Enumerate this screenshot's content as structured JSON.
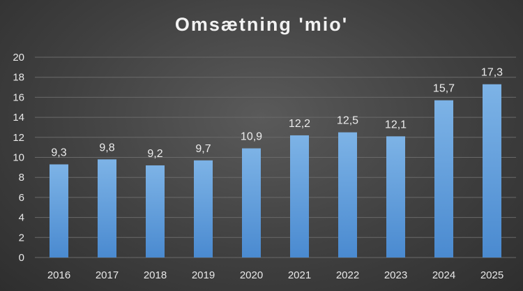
{
  "chart_data": {
    "type": "bar",
    "title": "Omsætning 'mio'",
    "categories": [
      "2016",
      "2017",
      "2018",
      "2019",
      "2020",
      "2021",
      "2022",
      "2023",
      "2024",
      "2025"
    ],
    "values": [
      9.3,
      9.8,
      9.2,
      9.7,
      10.9,
      12.2,
      12.5,
      12.1,
      15.7,
      17.3
    ],
    "data_labels": [
      "9,3",
      "9,8",
      "9,2",
      "9,7",
      "10,9",
      "12,2",
      "12,5",
      "12,1",
      "15,7",
      "17,3"
    ],
    "y_ticks": [
      "0",
      "2",
      "4",
      "6",
      "8",
      "10",
      "12",
      "14",
      "16",
      "18",
      "20"
    ],
    "ylim": [
      0,
      20
    ],
    "xlabel": "",
    "ylabel": "",
    "grid": true,
    "legend": "none",
    "colors": {
      "bar": "#5b9bd5",
      "bar_light": "#7db3e6",
      "gridline": "#6a6a6a",
      "text": "#e8e8e8"
    }
  }
}
